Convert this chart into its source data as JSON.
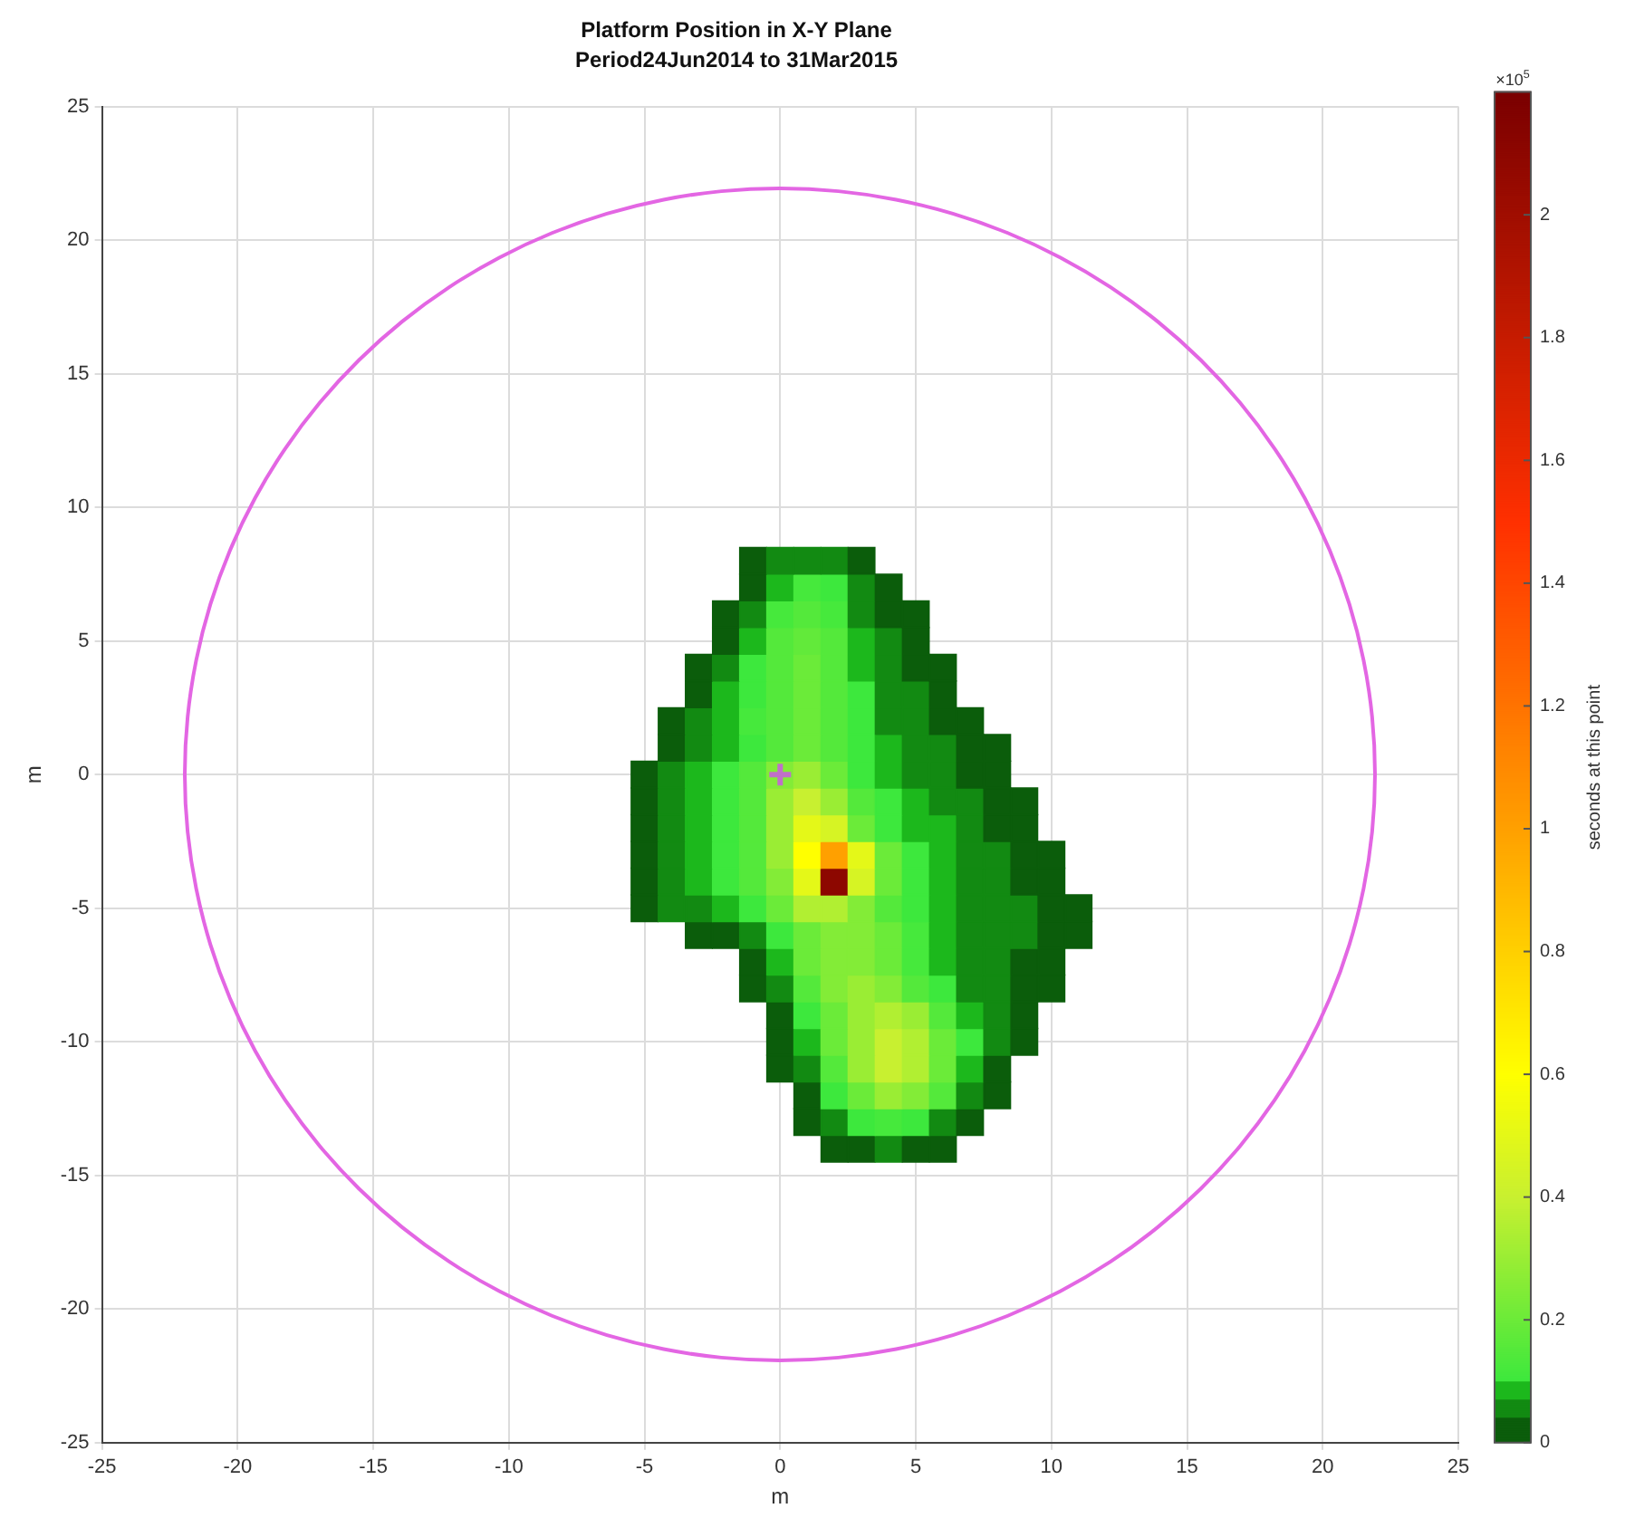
{
  "chart_data": {
    "type": "scatter",
    "title": "Platform Position in X-Y Plane",
    "subtitle": "Period24Jun2014 to 31Mar2015",
    "xlabel": "m",
    "ylabel": "m",
    "clabel": "seconds at this point",
    "annotations": [
      "×10$^{5}$"
    ],
    "xlim": [
      -25,
      25
    ],
    "ylim": [
      -25,
      25
    ],
    "xticks": [
      -25,
      -20,
      -15,
      -10,
      -5,
      0,
      5,
      10,
      15,
      20,
      25
    ],
    "yticks": [
      -25,
      -20,
      -15,
      -10,
      -5,
      0,
      5,
      10,
      15,
      20,
      25
    ],
    "clim": [
      0,
      2.2
    ],
    "cticks": [
      0,
      0.2,
      0.4,
      0.6,
      0.8,
      1,
      1.2,
      1.4,
      1.6,
      1.8,
      2
    ],
    "grid": true,
    "series": [
      {
        "type": "scatter",
        "color": "#c070c8",
        "marker": "cross",
        "x": [
          0
        ],
        "values": [
          0
        ]
      },
      {
        "type": "scatter",
        "marker": "square",
        "x": [
          -1,
          0,
          1,
          2,
          3
        ],
        "values": [
          8,
          8,
          8,
          8,
          8
        ],
        "cvalues": [
          0.02,
          0.05,
          0.05,
          0.05,
          0.02
        ],
        "colors": [
          "#0b5d0b",
          "#128a12",
          "#128a12",
          "#128a12",
          "#0b5d0b"
        ]
      },
      {
        "type": "scatter",
        "marker": "square",
        "x": [
          -1,
          0,
          1,
          2,
          3,
          4
        ],
        "values": [
          7,
          7,
          7,
          7,
          7,
          7
        ],
        "cvalues": [
          0.02,
          0.08,
          0.12,
          0.1,
          0.05,
          0.02
        ],
        "colors": [
          "#0b5d0b",
          "#1cb81c",
          "#46e93c",
          "#3de83d",
          "#128a12",
          "#0b5d0b"
        ]
      },
      {
        "type": "scatter",
        "marker": "square",
        "x": [
          -2,
          -1,
          0,
          1,
          2,
          3,
          4,
          5
        ],
        "values": [
          6,
          6,
          6,
          6,
          6,
          6,
          6,
          6
        ],
        "cvalues": [
          0.02,
          0.05,
          0.12,
          0.15,
          0.12,
          0.05,
          0.02,
          0.02
        ],
        "colors": [
          "#0b5d0b",
          "#128a12",
          "#46e93c",
          "#54e93b",
          "#46e93c",
          "#128a12",
          "#0b5d0b",
          "#0b5d0b"
        ]
      },
      {
        "type": "scatter",
        "marker": "square",
        "x": [
          -2,
          -1,
          0,
          1,
          2,
          3,
          4,
          5
        ],
        "values": [
          5,
          5,
          5,
          5,
          5,
          5,
          5,
          5
        ],
        "cvalues": [
          0.02,
          0.08,
          0.15,
          0.18,
          0.15,
          0.08,
          0.05,
          0.02
        ],
        "colors": [
          "#0b5d0b",
          "#1cb81c",
          "#54e93b",
          "#62ea3a",
          "#54e93b",
          "#1cb81c",
          "#128a12",
          "#0b5d0b"
        ]
      },
      {
        "type": "scatter",
        "marker": "square",
        "x": [
          -3,
          -2,
          -1,
          0,
          1,
          2,
          3,
          4,
          5,
          6
        ],
        "values": [
          4,
          4,
          4,
          4,
          4,
          4,
          4,
          4,
          4,
          4
        ],
        "cvalues": [
          0.02,
          0.05,
          0.1,
          0.15,
          0.2,
          0.15,
          0.08,
          0.05,
          0.02,
          0.02
        ],
        "colors": [
          "#0b5d0b",
          "#128a12",
          "#3de83d",
          "#54e93b",
          "#6beb39",
          "#54e93b",
          "#1cb81c",
          "#128a12",
          "#0b5d0b",
          "#0b5d0b"
        ]
      },
      {
        "type": "scatter",
        "marker": "square",
        "x": [
          -3,
          -2,
          -1,
          0,
          1,
          2,
          3,
          4,
          5,
          6
        ],
        "values": [
          3,
          3,
          3,
          3,
          3,
          3,
          3,
          3,
          3,
          3
        ],
        "cvalues": [
          0.02,
          0.08,
          0.1,
          0.15,
          0.2,
          0.15,
          0.1,
          0.05,
          0.05,
          0.02
        ],
        "colors": [
          "#0b5d0b",
          "#1cb81c",
          "#3de83d",
          "#54e93b",
          "#6beb39",
          "#54e93b",
          "#3de83d",
          "#128a12",
          "#128a12",
          "#0b5d0b"
        ]
      },
      {
        "type": "scatter",
        "marker": "square",
        "x": [
          -4,
          -3,
          -2,
          -1,
          0,
          1,
          2,
          3,
          4,
          5,
          6,
          7
        ],
        "values": [
          2,
          2,
          2,
          2,
          2,
          2,
          2,
          2,
          2,
          2,
          2,
          2
        ],
        "cvalues": [
          0.02,
          0.05,
          0.08,
          0.12,
          0.15,
          0.2,
          0.15,
          0.1,
          0.05,
          0.05,
          0.02,
          0.02
        ],
        "colors": [
          "#0b5d0b",
          "#128a12",
          "#1cb81c",
          "#46e93c",
          "#54e93b",
          "#6beb39",
          "#54e93b",
          "#3de83d",
          "#128a12",
          "#128a12",
          "#0b5d0b",
          "#0b5d0b"
        ]
      },
      {
        "type": "scatter",
        "marker": "square",
        "x": [
          -4,
          -3,
          -2,
          -1,
          0,
          1,
          2,
          3,
          4,
          5,
          6,
          7,
          8
        ],
        "values": [
          1,
          1,
          1,
          1,
          1,
          1,
          1,
          1,
          1,
          1,
          1,
          1,
          1
        ],
        "cvalues": [
          0.02,
          0.05,
          0.08,
          0.1,
          0.15,
          0.2,
          0.15,
          0.1,
          0.08,
          0.05,
          0.05,
          0.02,
          0.02
        ],
        "colors": [
          "#0b5d0b",
          "#128a12",
          "#1cb81c",
          "#3de83d",
          "#54e93b",
          "#6beb39",
          "#54e93b",
          "#3de83d",
          "#1cb81c",
          "#128a12",
          "#128a12",
          "#0b5d0b",
          "#0b5d0b"
        ]
      },
      {
        "type": "scatter",
        "marker": "square",
        "x": [
          -5,
          -4,
          -3,
          -2,
          -1,
          0,
          1,
          2,
          3,
          4,
          5,
          6,
          7,
          8
        ],
        "values": [
          0,
          0,
          0,
          0,
          0,
          0,
          0,
          0,
          0,
          0,
          0,
          0,
          0,
          0
        ],
        "cvalues": [
          0.02,
          0.05,
          0.08,
          0.1,
          0.15,
          0.25,
          0.3,
          0.2,
          0.1,
          0.08,
          0.05,
          0.05,
          0.02,
          0.02
        ],
        "colors": [
          "#0b5d0b",
          "#128a12",
          "#1cb81c",
          "#3de83d",
          "#54e93b",
          "#83ec37",
          "#9aed34",
          "#6beb39",
          "#3de83d",
          "#1cb81c",
          "#128a12",
          "#128a12",
          "#0b5d0b",
          "#0b5d0b"
        ]
      },
      {
        "type": "scatter",
        "marker": "square",
        "x": [
          -5,
          -4,
          -3,
          -2,
          -1,
          0,
          1,
          2,
          3,
          4,
          5,
          6,
          7,
          8,
          9
        ],
        "values": [
          -1,
          -1,
          -1,
          -1,
          -1,
          -1,
          -1,
          -1,
          -1,
          -1,
          -1,
          -1,
          -1,
          -1,
          -1
        ],
        "cvalues": [
          0.02,
          0.05,
          0.08,
          0.1,
          0.15,
          0.3,
          0.4,
          0.3,
          0.15,
          0.1,
          0.08,
          0.05,
          0.05,
          0.02,
          0.02
        ],
        "colors": [
          "#0b5d0b",
          "#128a12",
          "#1cb81c",
          "#3de83d",
          "#54e93b",
          "#9aed34",
          "#c8f030",
          "#9aed34",
          "#54e93b",
          "#3de83d",
          "#1cb81c",
          "#128a12",
          "#128a12",
          "#0b5d0b",
          "#0b5d0b"
        ]
      },
      {
        "type": "scatter",
        "marker": "square",
        "x": [
          -5,
          -4,
          -3,
          -2,
          -1,
          0,
          1,
          2,
          3,
          4,
          5,
          6,
          7,
          8,
          9
        ],
        "values": [
          -2,
          -2,
          -2,
          -2,
          -2,
          -2,
          -2,
          -2,
          -2,
          -2,
          -2,
          -2,
          -2,
          -2,
          -2
        ],
        "cvalues": [
          0.02,
          0.05,
          0.08,
          0.1,
          0.15,
          0.3,
          0.5,
          0.45,
          0.2,
          0.1,
          0.08,
          0.08,
          0.05,
          0.02,
          0.02
        ],
        "colors": [
          "#0b5d0b",
          "#128a12",
          "#1cb81c",
          "#3de83d",
          "#54e93b",
          "#9aed34",
          "#e4f818",
          "#d6f424",
          "#6beb39",
          "#3de83d",
          "#1cb81c",
          "#1cb81c",
          "#128a12",
          "#0b5d0b",
          "#0b5d0b"
        ]
      },
      {
        "type": "scatter",
        "marker": "square",
        "x": [
          -5,
          -4,
          -3,
          -2,
          -1,
          0,
          1,
          2,
          3,
          4,
          5,
          6,
          7,
          8,
          9,
          10
        ],
        "values": [
          -3,
          -3,
          -3,
          -3,
          -3,
          -3,
          -3,
          -3,
          -3,
          -3,
          -3,
          -3,
          -3,
          -3,
          -3,
          -3
        ],
        "cvalues": [
          0.02,
          0.05,
          0.08,
          0.1,
          0.15,
          0.3,
          0.6,
          1.0,
          0.5,
          0.2,
          0.1,
          0.08,
          0.05,
          0.05,
          0.02,
          0.02
        ],
        "colors": [
          "#0b5d0b",
          "#128a12",
          "#1cb81c",
          "#3de83d",
          "#54e93b",
          "#9aed34",
          "#ffff00",
          "#ffa000",
          "#e4f818",
          "#6beb39",
          "#3de83d",
          "#1cb81c",
          "#128a12",
          "#128a12",
          "#0b5d0b",
          "#0b5d0b"
        ]
      },
      {
        "type": "scatter",
        "marker": "square",
        "x": [
          -5,
          -4,
          -3,
          -2,
          -1,
          0,
          1,
          2,
          3,
          4,
          5,
          6,
          7,
          8,
          9,
          10
        ],
        "values": [
          -4,
          -4,
          -4,
          -4,
          -4,
          -4,
          -4,
          -4,
          -4,
          -4,
          -4,
          -4,
          -4,
          -4,
          -4,
          -4
        ],
        "cvalues": [
          0.02,
          0.05,
          0.08,
          0.1,
          0.15,
          0.25,
          0.5,
          2.1,
          0.45,
          0.2,
          0.1,
          0.08,
          0.05,
          0.05,
          0.02,
          0.02
        ],
        "colors": [
          "#0b5d0b",
          "#128a12",
          "#1cb81c",
          "#3de83d",
          "#54e93b",
          "#83ec37",
          "#e4f818",
          "#8d0700",
          "#d6f424",
          "#6beb39",
          "#3de83d",
          "#1cb81c",
          "#128a12",
          "#128a12",
          "#0b5d0b",
          "#0b5d0b"
        ]
      },
      {
        "type": "scatter",
        "marker": "square",
        "x": [
          -5,
          -4,
          -3,
          -2,
          -1,
          0,
          1,
          2,
          3,
          4,
          5,
          6,
          7,
          8,
          9,
          10,
          11
        ],
        "values": [
          -5,
          -5,
          -5,
          -5,
          -5,
          -5,
          -5,
          -5,
          -5,
          -5,
          -5,
          -5,
          -5,
          -5,
          -5,
          -5,
          -5
        ],
        "cvalues": [
          0.02,
          0.05,
          0.05,
          0.08,
          0.1,
          0.2,
          0.35,
          0.35,
          0.25,
          0.15,
          0.1,
          0.08,
          0.05,
          0.05,
          0.05,
          0.02,
          0.02
        ],
        "colors": [
          "#0b5d0b",
          "#128a12",
          "#128a12",
          "#1cb81c",
          "#3de83d",
          "#6beb39",
          "#b1ef32",
          "#b1ef32",
          "#83ec37",
          "#54e93b",
          "#3de83d",
          "#1cb81c",
          "#128a12",
          "#128a12",
          "#128a12",
          "#0b5d0b",
          "#0b5d0b"
        ]
      },
      {
        "type": "scatter",
        "marker": "square",
        "x": [
          -3,
          -2,
          -1,
          0,
          1,
          2,
          3,
          4,
          5,
          6,
          7,
          8,
          9,
          10,
          11
        ],
        "values": [
          -6,
          -6,
          -6,
          -6,
          -6,
          -6,
          -6,
          -6,
          -6,
          -6,
          -6,
          -6,
          -6,
          -6,
          -6
        ],
        "cvalues": [
          0.02,
          0.02,
          0.05,
          0.1,
          0.2,
          0.25,
          0.25,
          0.2,
          0.12,
          0.08,
          0.05,
          0.05,
          0.05,
          0.02,
          0.02
        ],
        "colors": [
          "#0b5d0b",
          "#0b5d0b",
          "#128a12",
          "#3de83d",
          "#6beb39",
          "#83ec37",
          "#83ec37",
          "#6beb39",
          "#46e93c",
          "#1cb81c",
          "#128a12",
          "#128a12",
          "#128a12",
          "#0b5d0b",
          "#0b5d0b"
        ]
      },
      {
        "type": "scatter",
        "marker": "square",
        "x": [
          -1,
          0,
          1,
          2,
          3,
          4,
          5,
          6,
          7,
          8,
          9,
          10
        ],
        "values": [
          -7,
          -7,
          -7,
          -7,
          -7,
          -7,
          -7,
          -7,
          -7,
          -7,
          -7,
          -7
        ],
        "cvalues": [
          0.02,
          0.08,
          0.2,
          0.25,
          0.25,
          0.2,
          0.12,
          0.08,
          0.05,
          0.05,
          0.02,
          0.02
        ],
        "colors": [
          "#0b5d0b",
          "#1cb81c",
          "#6beb39",
          "#83ec37",
          "#83ec37",
          "#6beb39",
          "#46e93c",
          "#1cb81c",
          "#128a12",
          "#128a12",
          "#0b5d0b",
          "#0b5d0b"
        ]
      },
      {
        "type": "scatter",
        "marker": "square",
        "x": [
          -1,
          0,
          1,
          2,
          3,
          4,
          5,
          6,
          7,
          8,
          9,
          10
        ],
        "values": [
          -8,
          -8,
          -8,
          -8,
          -8,
          -8,
          -8,
          -8,
          -8,
          -8,
          -8,
          -8
        ],
        "cvalues": [
          0.02,
          0.05,
          0.15,
          0.25,
          0.3,
          0.25,
          0.15,
          0.1,
          0.05,
          0.05,
          0.02,
          0.02
        ],
        "colors": [
          "#0b5d0b",
          "#128a12",
          "#54e93b",
          "#83ec37",
          "#9aed34",
          "#83ec37",
          "#54e93b",
          "#3de83d",
          "#128a12",
          "#128a12",
          "#0b5d0b",
          "#0b5d0b"
        ]
      },
      {
        "type": "scatter",
        "marker": "square",
        "x": [
          0,
          1,
          2,
          3,
          4,
          5,
          6,
          7,
          8,
          9
        ],
        "values": [
          -9,
          -9,
          -9,
          -9,
          -9,
          -9,
          -9,
          -9,
          -9,
          -9
        ],
        "cvalues": [
          0.02,
          0.1,
          0.2,
          0.3,
          0.35,
          0.3,
          0.15,
          0.08,
          0.05,
          0.02
        ],
        "colors": [
          "#0b5d0b",
          "#3de83d",
          "#6beb39",
          "#9aed34",
          "#b1ef32",
          "#9aed34",
          "#54e93b",
          "#1cb81c",
          "#128a12",
          "#0b5d0b"
        ]
      },
      {
        "type": "scatter",
        "marker": "square",
        "x": [
          0,
          1,
          2,
          3,
          4,
          5,
          6,
          7,
          8,
          9
        ],
        "values": [
          -10,
          -10,
          -10,
          -10,
          -10,
          -10,
          -10,
          -10,
          -10,
          -10
        ],
        "cvalues": [
          0.02,
          0.08,
          0.2,
          0.3,
          0.4,
          0.35,
          0.2,
          0.1,
          0.05,
          0.02
        ],
        "colors": [
          "#0b5d0b",
          "#1cb81c",
          "#6beb39",
          "#9aed34",
          "#c8f030",
          "#b1ef32",
          "#6beb39",
          "#3de83d",
          "#128a12",
          "#0b5d0b"
        ]
      },
      {
        "type": "scatter",
        "marker": "square",
        "x": [
          0,
          1,
          2,
          3,
          4,
          5,
          6,
          7,
          8
        ],
        "values": [
          -11,
          -11,
          -11,
          -11,
          -11,
          -11,
          -11,
          -11,
          -11
        ],
        "cvalues": [
          0.02,
          0.05,
          0.15,
          0.3,
          0.4,
          0.35,
          0.2,
          0.08,
          0.02
        ],
        "colors": [
          "#0b5d0b",
          "#128a12",
          "#54e93b",
          "#9aed34",
          "#c8f030",
          "#b1ef32",
          "#6beb39",
          "#1cb81c",
          "#0b5d0b"
        ]
      },
      {
        "type": "scatter",
        "marker": "square",
        "x": [
          1,
          2,
          3,
          4,
          5,
          6,
          7,
          8
        ],
        "values": [
          -12,
          -12,
          -12,
          -12,
          -12,
          -12,
          -12,
          -12
        ],
        "cvalues": [
          0.02,
          0.1,
          0.2,
          0.3,
          0.25,
          0.15,
          0.05,
          0.02
        ],
        "colors": [
          "#0b5d0b",
          "#3de83d",
          "#6beb39",
          "#9aed34",
          "#83ec37",
          "#54e93b",
          "#128a12",
          "#0b5d0b"
        ]
      },
      {
        "type": "scatter",
        "marker": "square",
        "x": [
          1,
          2,
          3,
          4,
          5,
          6,
          7
        ],
        "values": [
          -13,
          -13,
          -13,
          -13,
          -13,
          -13,
          -13
        ],
        "cvalues": [
          0.02,
          0.05,
          0.1,
          0.12,
          0.1,
          0.05,
          0.02
        ],
        "colors": [
          "#0b5d0b",
          "#128a12",
          "#3de83d",
          "#46e93c",
          "#3de83d",
          "#128a12",
          "#0b5d0b"
        ]
      },
      {
        "type": "scatter",
        "marker": "square",
        "x": [
          2,
          3,
          4,
          5,
          6
        ],
        "values": [
          -14,
          -14,
          -14,
          -14,
          -14
        ],
        "cvalues": [
          0.02,
          0.02,
          0.05,
          0.02,
          0.02
        ],
        "colors": [
          "#0b5d0b",
          "#0b5d0b",
          "#128a12",
          "#0b5d0b",
          "#0b5d0b"
        ]
      }
    ]
  }
}
